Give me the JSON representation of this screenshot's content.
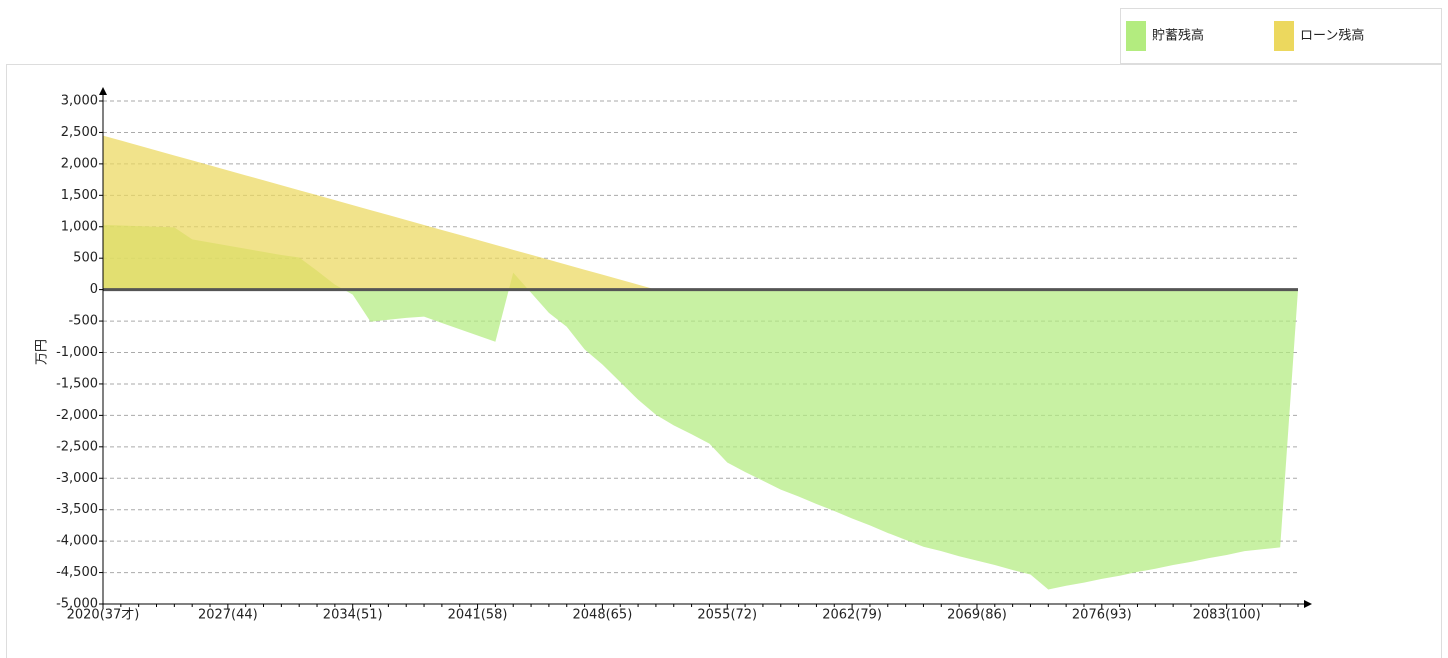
{
  "chart_data": {
    "type": "area",
    "y_label": "万円",
    "categories": [
      "2020(37才)",
      null,
      null,
      null,
      null,
      null,
      null,
      "2027(44)",
      null,
      null,
      null,
      null,
      null,
      null,
      "2034(51)",
      null,
      null,
      null,
      null,
      null,
      null,
      "2041(58)",
      null,
      null,
      null,
      null,
      null,
      null,
      "2048(65)",
      null,
      null,
      null,
      null,
      null,
      null,
      "2055(72)",
      null,
      null,
      null,
      null,
      null,
      null,
      "2062(79)",
      null,
      null,
      null,
      null,
      null,
      null,
      "2069(86)",
      null,
      null,
      null,
      null,
      null,
      null,
      "2076(93)",
      null,
      null,
      null,
      null,
      null,
      null,
      "2083(100)",
      null,
      null,
      null,
      null
    ],
    "series": [
      {
        "name": "貯蓄残高",
        "color": "#b3ec7f",
        "values": [
          1030,
          1020,
          1010,
          1000,
          990,
          800,
          750,
          700,
          650,
          600,
          550,
          510,
          300,
          80,
          -80,
          -510,
          -480,
          -450,
          -430,
          -530,
          -630,
          -730,
          -830,
          270,
          -50,
          -370,
          -590,
          -950,
          -1190,
          -1470,
          -1750,
          -1990,
          -2160,
          -2300,
          -2450,
          -2750,
          -2900,
          -3040,
          -3180,
          -3290,
          -3410,
          -3520,
          -3640,
          -3750,
          -3870,
          -3980,
          -4090,
          -4160,
          -4240,
          -4310,
          -4380,
          -4460,
          -4530,
          -4770,
          -4710,
          -4660,
          -4600,
          -4550,
          -4490,
          -4440,
          -4380,
          -4330,
          -4270,
          -4220,
          -4160,
          -4130,
          -4100,
          0
        ]
      },
      {
        "name": "ローン残高",
        "color": "#ecd85e",
        "values": [
          2450,
          2371,
          2292,
          2213,
          2134,
          2055,
          1976,
          1897,
          1818,
          1739,
          1660,
          1581,
          1502,
          1423,
          1344,
          1265,
          1186,
          1107,
          1028,
          949,
          870,
          791,
          712,
          633,
          554,
          475,
          396,
          317,
          238,
          159,
          80,
          0,
          0,
          0,
          0,
          0,
          0,
          0,
          0,
          0,
          0,
          0,
          0,
          0,
          0,
          0,
          0,
          0,
          0,
          0,
          0,
          0,
          0,
          0,
          0,
          0,
          0,
          0,
          0,
          0,
          0,
          0,
          0,
          0,
          0,
          0,
          0,
          0
        ]
      }
    ],
    "ylim": [
      -5000,
      3000
    ],
    "yticks": [
      {
        "value": -5000,
        "label": "-5,000"
      },
      {
        "value": -4500,
        "label": "-4,500"
      },
      {
        "value": -4000,
        "label": "-4,000"
      },
      {
        "value": -3500,
        "label": "-3,500"
      },
      {
        "value": -3000,
        "label": "-3,000"
      },
      {
        "value": -2500,
        "label": "-2,500"
      },
      {
        "value": -2000,
        "label": "-2,000"
      },
      {
        "value": -1500,
        "label": "-1,500"
      },
      {
        "value": -1000,
        "label": "-1,000"
      },
      -500,
      0,
      500,
      {
        "value": 1000,
        "label": "1,000"
      },
      {
        "value": 1500,
        "label": "1,500"
      },
      {
        "value": 2000,
        "label": "2,000"
      },
      {
        "value": 2500,
        "label": "2,500"
      },
      {
        "value": 3000,
        "label": "3,000"
      }
    ],
    "grid": true,
    "legend": "top-right"
  }
}
